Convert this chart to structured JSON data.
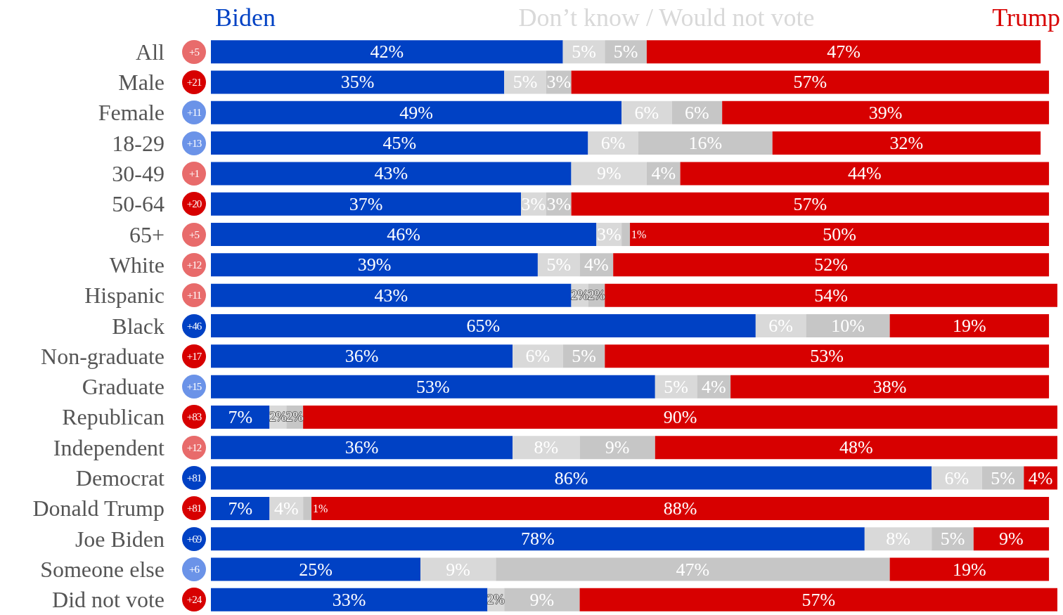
{
  "chart_data": {
    "type": "bar",
    "orientation": "horizontal",
    "stacked": true,
    "legend": "top",
    "legend_title": "Don’t know / Would not vote",
    "categories": [
      "All",
      "Male",
      "Female",
      "18-29",
      "30-49",
      "50-64",
      "65+",
      "White",
      "Hispanic",
      "Black",
      "Non-graduate",
      "Graduate",
      "Republican",
      "Independent",
      "Democrat",
      "Donald Trump",
      "Joe Biden",
      "Someone else",
      "Did not vote"
    ],
    "series": [
      {
        "name": "Biden",
        "color": "#0041c4",
        "values": [
          42,
          35,
          49,
          45,
          43,
          37,
          46,
          39,
          43,
          65,
          36,
          53,
          7,
          36,
          86,
          7,
          78,
          25,
          33
        ],
        "value_labels": [
          "42%",
          "35%",
          "49%",
          "45%",
          "43%",
          "37%",
          "46%",
          "39%",
          "43%",
          "65%",
          "36%",
          "53%",
          "7%",
          "36%",
          "86%",
          "7%",
          "78%",
          "25%",
          "33%"
        ]
      },
      {
        "color": "#d9d9d9",
        "values": [
          5,
          5,
          6,
          6,
          9,
          3,
          3,
          5,
          2,
          6,
          6,
          5,
          2,
          8,
          6,
          4,
          8,
          9,
          2
        ],
        "value_labels": [
          "5%",
          "5%",
          "6%",
          "6%",
          "9%",
          "3%",
          "3%",
          "5%",
          "2%",
          "6%",
          "6%",
          "5%",
          "2%",
          "8%",
          "6%",
          "4%",
          "8%",
          "9%",
          "2%"
        ]
      },
      {
        "color": "#c6c6c6",
        "values": [
          5,
          3,
          6,
          16,
          4,
          3,
          1,
          4,
          2,
          10,
          5,
          4,
          2,
          9,
          5,
          1,
          5,
          47,
          9
        ],
        "value_labels": [
          "5%",
          "3%",
          "6%",
          "16%",
          "4%",
          "3%",
          "1%",
          "4%",
          "2%",
          "10%",
          "5%",
          "4%",
          "2%",
          "9%",
          "5%",
          "1%",
          "5%",
          "47%",
          "9%"
        ]
      },
      {
        "name": "Trump",
        "color": "#d70000",
        "values": [
          47,
          57,
          39,
          32,
          44,
          57,
          50,
          52,
          54,
          19,
          53,
          38,
          90,
          48,
          4,
          88,
          9,
          19,
          57
        ],
        "value_labels": [
          "47%",
          "57%",
          "39%",
          "32%",
          "44%",
          "57%",
          "50%",
          "52%",
          "54%",
          "19%",
          "53%",
          "38%",
          "90%",
          "48%",
          "4%",
          "88%",
          "9%",
          "19%",
          "57%"
        ]
      }
    ],
    "annotations": [
      "+5",
      "+21",
      "+11",
      "+13",
      "+1",
      "+20",
      "+5",
      "+12",
      "+11",
      "+46",
      "+17",
      "+15",
      "+83",
      "+12",
      "+81",
      "+81",
      "+69",
      "+6",
      "+24"
    ]
  }
}
